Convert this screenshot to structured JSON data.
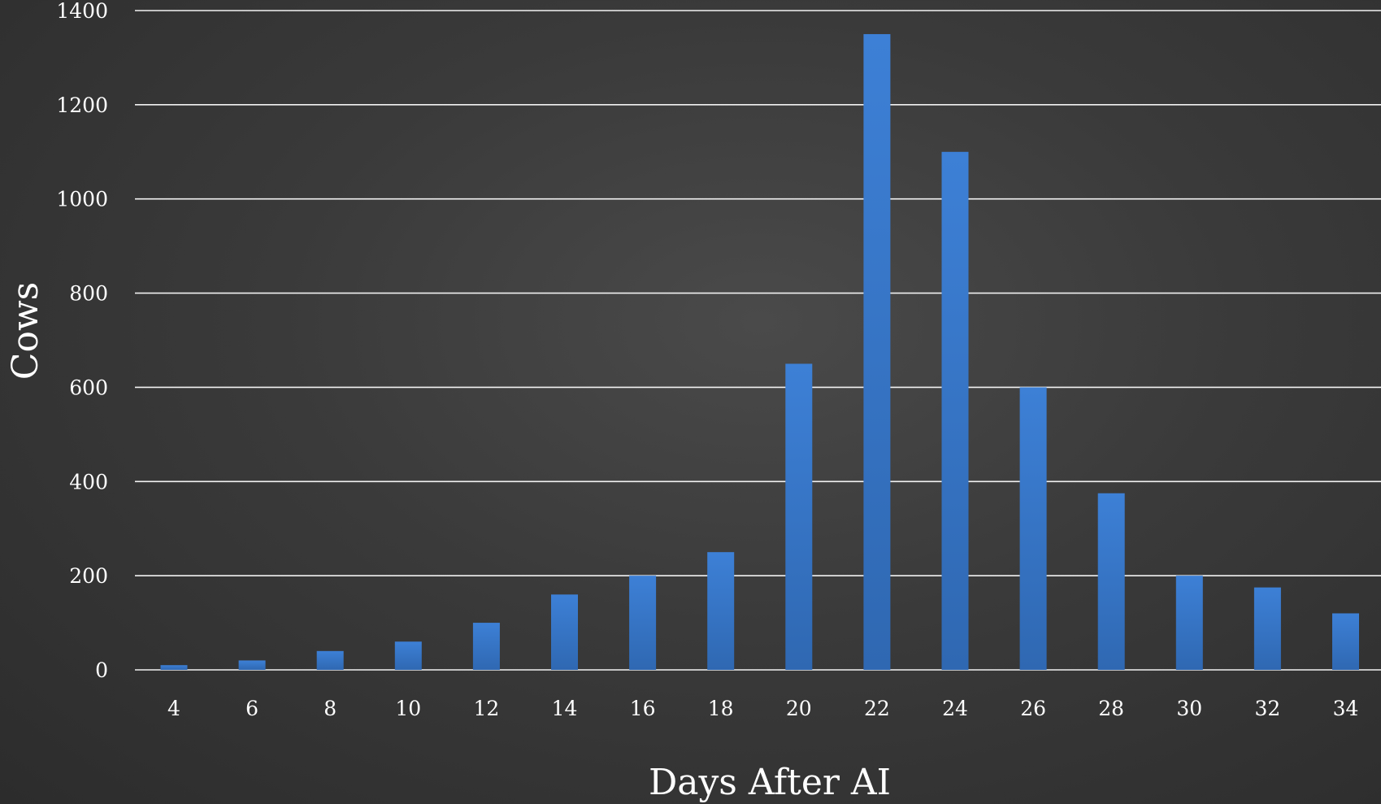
{
  "chart_data": {
    "type": "bar",
    "xlabel": "Days After AI",
    "ylabel": "Cows",
    "ylim": [
      0,
      1400
    ],
    "yticks": [
      0,
      200,
      400,
      600,
      800,
      1000,
      1200,
      1400
    ],
    "grid": true,
    "categories": [
      "4",
      "6",
      "8",
      "10",
      "12",
      "14",
      "16",
      "18",
      "20",
      "22",
      "24",
      "26",
      "28",
      "30",
      "32",
      "34"
    ],
    "values": [
      10,
      20,
      40,
      60,
      100,
      160,
      200,
      250,
      650,
      1350,
      1100,
      600,
      375,
      200,
      175,
      120
    ],
    "colors": {
      "bar": "#3a7cd0",
      "bar_dark": "#2f66ad",
      "grid": "#f2f2f2",
      "text": "#ffffff"
    }
  }
}
